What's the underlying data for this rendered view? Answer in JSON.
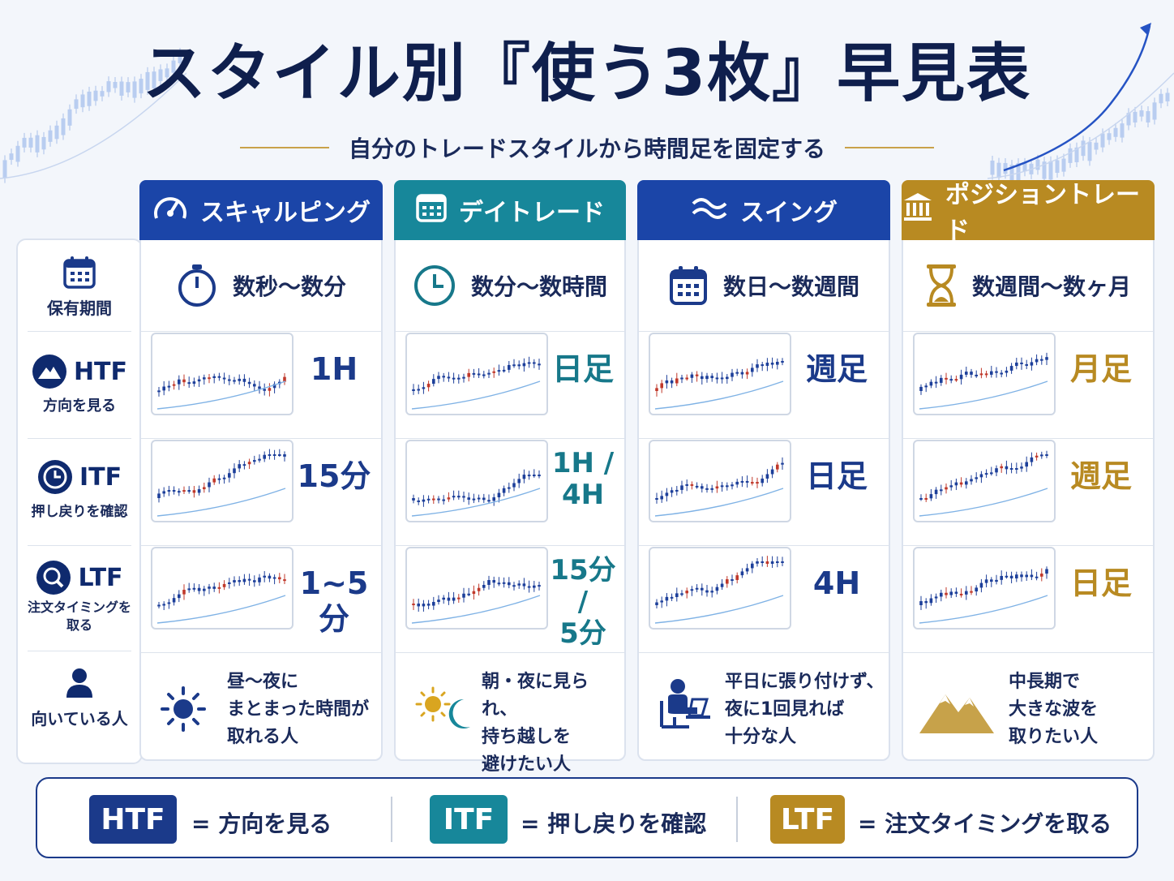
{
  "header": {
    "title_prefix": "スタイル別",
    "title_highlight": "『使う3枚』",
    "title_suffix": "早見表",
    "subtitle": "自分のトレードスタイルから時間足を固定する"
  },
  "row_labels": {
    "period": "保有期間",
    "htf": {
      "abbr": "HTF",
      "desc": "方向を見る"
    },
    "itf": {
      "abbr": "ITF",
      "desc": "押し戻りを確認"
    },
    "ltf": {
      "abbr": "LTF",
      "desc": "注文タイミングを\n取る"
    },
    "who": "向いている人"
  },
  "styles": [
    {
      "name": "スキャルピング",
      "color": "#1b45a8",
      "text_color": "#1b3a8a",
      "icon": "speedometer-icon",
      "period": "数秒～数分",
      "htf": "1H",
      "itf": "15分",
      "ltf": "1~5分",
      "who": "昼～夜に\nまとまった時間が\n取れる人",
      "who_icon": "sun-icon"
    },
    {
      "name": "デイトレード",
      "color": "#17879a",
      "text_color": "#17788a",
      "icon": "calendar-icon",
      "period": "数分～数時間",
      "htf": "日足",
      "itf": "1H /\n4H",
      "ltf": "15分 /\n5分",
      "who": "朝・夜に見られ、\n持ち越しを\n避けたい人",
      "who_icon": "sun-moon-icon"
    },
    {
      "name": "スイング",
      "color": "#1b45a8",
      "text_color": "#1b3a8a",
      "icon": "wave-icon",
      "period": "数日～数週間",
      "htf": "週足",
      "itf": "日足",
      "ltf": "4H",
      "who": "平日に張り付けず、\n夜に1回見れば\n十分な人",
      "who_icon": "person-desk-icon"
    },
    {
      "name": "ポジショントレード",
      "color": "#b88a22",
      "text_color": "#b88a22",
      "icon": "bank-icon",
      "period": "数週間～数ヶ月",
      "htf": "月足",
      "itf": "週足",
      "ltf": "日足",
      "who": "中長期で\n大きな波を\n取りたい人",
      "who_icon": "mountain-icon"
    }
  ],
  "legend": [
    {
      "abbr": "HTF",
      "text": "= 方向を見る",
      "color": "#1b3a8a"
    },
    {
      "abbr": "ITF",
      "text": "= 押し戻りを確認",
      "color": "#17879a"
    },
    {
      "abbr": "LTF",
      "text": "= 注文タイミングを取る",
      "color": "#b88a22"
    }
  ]
}
